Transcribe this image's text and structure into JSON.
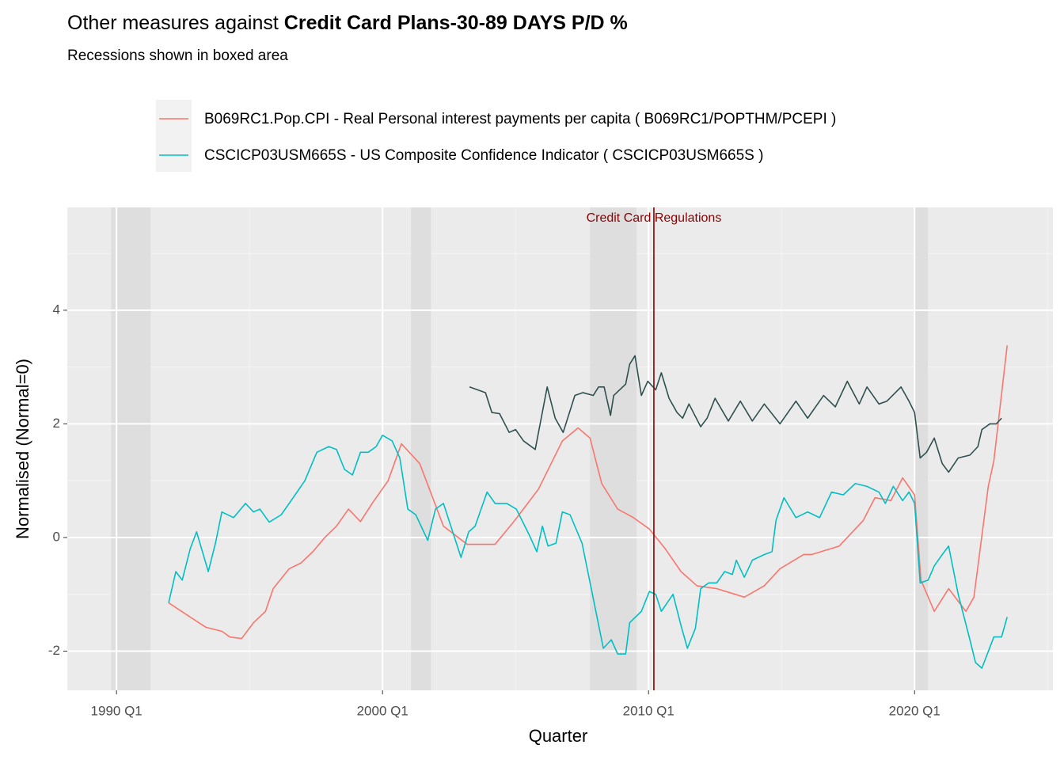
{
  "chart_data": {
    "type": "line",
    "title": [
      "Other measures against",
      "Credit Card Plans-30-89 DAYS P/D %"
    ],
    "subtitle": "Recessions shown in boxed area",
    "x_label": "Quarter",
    "y_label": "Normalised (Normal=0)",
    "xlim": [
      1988.15,
      2025.2
    ],
    "ylim": [
      -2.69,
      5.81
    ],
    "xticks": [
      {
        "value": 1990,
        "label": "1990 Q1"
      },
      {
        "value": 2000,
        "label": "2000 Q1"
      },
      {
        "value": 2010,
        "label": "2010 Q1"
      },
      {
        "value": 2020,
        "label": "2020 Q1"
      }
    ],
    "yticks": [
      -2,
      0,
      2,
      4
    ],
    "xticks_minor": [
      1995,
      2005,
      2015,
      2025
    ],
    "yticks_minor": [
      -1,
      1,
      3,
      5
    ],
    "grid": true,
    "legend": "top",
    "recessions": [
      [
        1989.8,
        1991.28
      ],
      [
        2001.07,
        2001.82
      ],
      [
        2007.8,
        2009.55
      ],
      [
        2020.0,
        2020.5
      ]
    ],
    "recession_color": "#dedede",
    "annotation": {
      "x": 2010.2,
      "text": "Credit Card Regulations",
      "color": "#8b0000"
    },
    "series": [
      {
        "name": "B069RC1.Pop.CPI - Real Personal interest payments per capita ( B069RC1/POPTHM/PCEPI )",
        "color": "#F8766D",
        "x": [
          1991.96,
          1992.77,
          1993.36,
          1993.96,
          1994.26,
          1994.7,
          1995.15,
          1995.6,
          1995.89,
          1996.49,
          1996.93,
          1997.38,
          1997.83,
          1998.27,
          1998.72,
          1999.17,
          1999.61,
          2000.21,
          2000.71,
          2001.4,
          2002.29,
          2003.18,
          2004.23,
          2004.97,
          2005.86,
          2006.76,
          2007.35,
          2007.8,
          2008.24,
          2008.84,
          2009.43,
          2010.03,
          2010.63,
          2011.22,
          2011.82,
          2012.56,
          2013.6,
          2014.35,
          2014.94,
          2015.83,
          2016.13,
          2017.17,
          2018.07,
          2018.51,
          2019.11,
          2019.55,
          2020.0,
          2020.24,
          2020.74,
          2021.28,
          2021.93,
          2022.23,
          2022.77,
          2022.98,
          2023.48
        ],
        "values": [
          -1.15,
          -1.4,
          -1.58,
          -1.65,
          -1.75,
          -1.78,
          -1.5,
          -1.3,
          -0.9,
          -0.55,
          -0.45,
          -0.25,
          0.0,
          0.2,
          0.5,
          0.28,
          0.6,
          1.0,
          1.65,
          1.3,
          0.2,
          -0.12,
          -0.12,
          0.3,
          0.85,
          1.7,
          1.93,
          1.75,
          0.95,
          0.5,
          0.35,
          0.15,
          -0.2,
          -0.6,
          -0.85,
          -0.9,
          -1.05,
          -0.85,
          -0.55,
          -0.3,
          -0.3,
          -0.15,
          0.3,
          0.7,
          0.65,
          1.05,
          0.75,
          -0.75,
          -1.3,
          -0.9,
          -1.3,
          -1.05,
          0.9,
          1.35,
          3.38
        ]
      },
      {
        "name": "CSCICP03USM665S - US Composite Confidence Indicator ( CSCICP03USM665S )",
        "color": "#00BFC4",
        "x": [
          1991.96,
          1992.23,
          1992.47,
          1992.77,
          1993.01,
          1993.45,
          1993.72,
          1993.96,
          1994.4,
          1994.85,
          1995.15,
          1995.39,
          1995.74,
          1996.19,
          1996.64,
          1997.08,
          1997.53,
          1997.98,
          1998.27,
          1998.57,
          1998.87,
          1999.17,
          1999.46,
          1999.76,
          2000.0,
          2000.36,
          2000.65,
          2000.95,
          2001.25,
          2001.7,
          2001.99,
          2002.29,
          2002.95,
          2003.24,
          2003.48,
          2003.93,
          2004.23,
          2004.67,
          2005.03,
          2005.51,
          2005.8,
          2006.01,
          2006.22,
          2006.52,
          2006.76,
          2007.05,
          2007.5,
          2007.89,
          2008.3,
          2008.6,
          2008.84,
          2009.14,
          2009.29,
          2009.73,
          2010.03,
          2010.27,
          2010.48,
          2010.92,
          2011.22,
          2011.46,
          2011.76,
          2011.96,
          2012.26,
          2012.56,
          2012.86,
          2013.15,
          2013.3,
          2013.6,
          2013.9,
          2014.35,
          2014.64,
          2014.79,
          2015.09,
          2015.54,
          2015.98,
          2016.43,
          2016.88,
          2017.32,
          2017.77,
          2018.21,
          2018.66,
          2018.9,
          2019.2,
          2019.55,
          2019.79,
          2020.0,
          2020.21,
          2020.51,
          2020.74,
          2021.04,
          2021.28,
          2021.64,
          2022.08,
          2022.29,
          2022.53,
          2022.98,
          2023.27,
          2023.48
        ],
        "values": [
          -1.15,
          -0.6,
          -0.75,
          -0.2,
          0.1,
          -0.6,
          -0.1,
          0.45,
          0.35,
          0.6,
          0.45,
          0.5,
          0.27,
          0.4,
          0.7,
          1.0,
          1.5,
          1.6,
          1.55,
          1.2,
          1.1,
          1.5,
          1.5,
          1.6,
          1.8,
          1.7,
          1.4,
          0.5,
          0.4,
          -0.05,
          0.5,
          0.6,
          -0.35,
          0.1,
          0.2,
          0.8,
          0.6,
          0.6,
          0.5,
          0.05,
          -0.25,
          0.2,
          -0.15,
          -0.1,
          0.45,
          0.4,
          -0.1,
          -1.0,
          -1.95,
          -1.8,
          -2.05,
          -2.05,
          -1.5,
          -1.3,
          -0.95,
          -1.0,
          -1.3,
          -1.0,
          -1.55,
          -1.95,
          -1.6,
          -0.9,
          -0.8,
          -0.8,
          -0.6,
          -0.65,
          -0.4,
          -0.7,
          -0.4,
          -0.3,
          -0.25,
          0.3,
          0.7,
          0.35,
          0.45,
          0.35,
          0.8,
          0.75,
          0.95,
          0.9,
          0.8,
          0.6,
          0.9,
          0.65,
          0.8,
          0.6,
          -0.8,
          -0.75,
          -0.5,
          -0.3,
          -0.15,
          -1.0,
          -1.8,
          -2.2,
          -2.3,
          -1.75,
          -1.75,
          -1.4
        ]
      },
      {
        "color": "#2F4F4F",
        "x": [
          2003.27,
          2003.57,
          2003.87,
          2004.11,
          2004.4,
          2004.76,
          2005.0,
          2005.3,
          2005.74,
          2006.19,
          2006.49,
          2006.79,
          2007.23,
          2007.53,
          2007.92,
          2008.12,
          2008.33,
          2008.57,
          2008.69,
          2009.14,
          2009.29,
          2009.49,
          2009.73,
          2009.97,
          2010.27,
          2010.48,
          2010.77,
          2011.07,
          2011.28,
          2011.52,
          2011.96,
          2012.2,
          2012.5,
          2013.0,
          2013.45,
          2013.9,
          2014.35,
          2014.94,
          2015.54,
          2015.98,
          2016.58,
          2017.02,
          2017.47,
          2017.92,
          2018.21,
          2018.66,
          2018.96,
          2019.49,
          2019.79,
          2020.0,
          2020.21,
          2020.45,
          2020.74,
          2021.04,
          2021.28,
          2021.64,
          2022.08,
          2022.38,
          2022.53,
          2022.83,
          2023.07,
          2023.27
        ],
        "values": [
          2.65,
          2.6,
          2.55,
          2.2,
          2.18,
          1.85,
          1.9,
          1.7,
          1.55,
          2.65,
          2.1,
          1.85,
          2.5,
          2.55,
          2.5,
          2.65,
          2.65,
          2.15,
          2.5,
          2.7,
          3.05,
          3.2,
          2.5,
          2.75,
          2.6,
          2.9,
          2.45,
          2.2,
          2.1,
          2.35,
          1.95,
          2.1,
          2.45,
          2.05,
          2.4,
          2.05,
          2.35,
          2.0,
          2.4,
          2.1,
          2.5,
          2.3,
          2.75,
          2.35,
          2.65,
          2.35,
          2.4,
          2.65,
          2.4,
          2.2,
          1.4,
          1.5,
          1.75,
          1.3,
          1.15,
          1.4,
          1.45,
          1.6,
          1.9,
          2.0,
          2.0,
          2.1
        ]
      }
    ]
  }
}
